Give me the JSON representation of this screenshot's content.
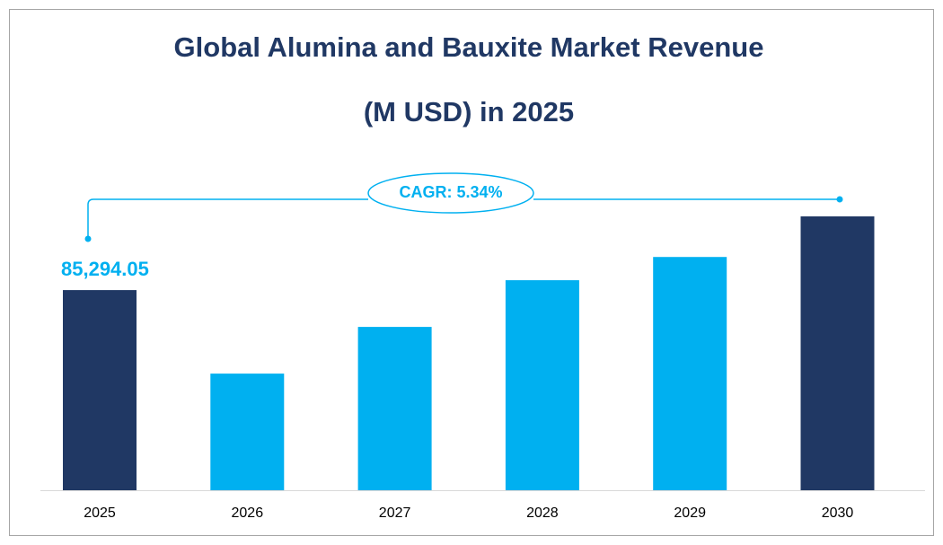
{
  "chart_data": {
    "type": "bar",
    "title": [
      "Global Alumina and Bauxite Market Revenue",
      "(M USD) in 2025"
    ],
    "categories": [
      "2025",
      "2026",
      "2027",
      "2028",
      "2029",
      "2030"
    ],
    "values": [
      85294.05,
      49700,
      69600,
      89500,
      99400,
      116700
    ],
    "value_labels": [
      "85,294.05",
      null,
      null,
      null,
      null,
      null
    ],
    "colors": [
      "#203864",
      "#00b0f0",
      "#00b0f0",
      "#00b0f0",
      "#00b0f0",
      "#203864"
    ],
    "label_color": "#00b0f0",
    "annotation": "CAGR:  5.34%"
  }
}
